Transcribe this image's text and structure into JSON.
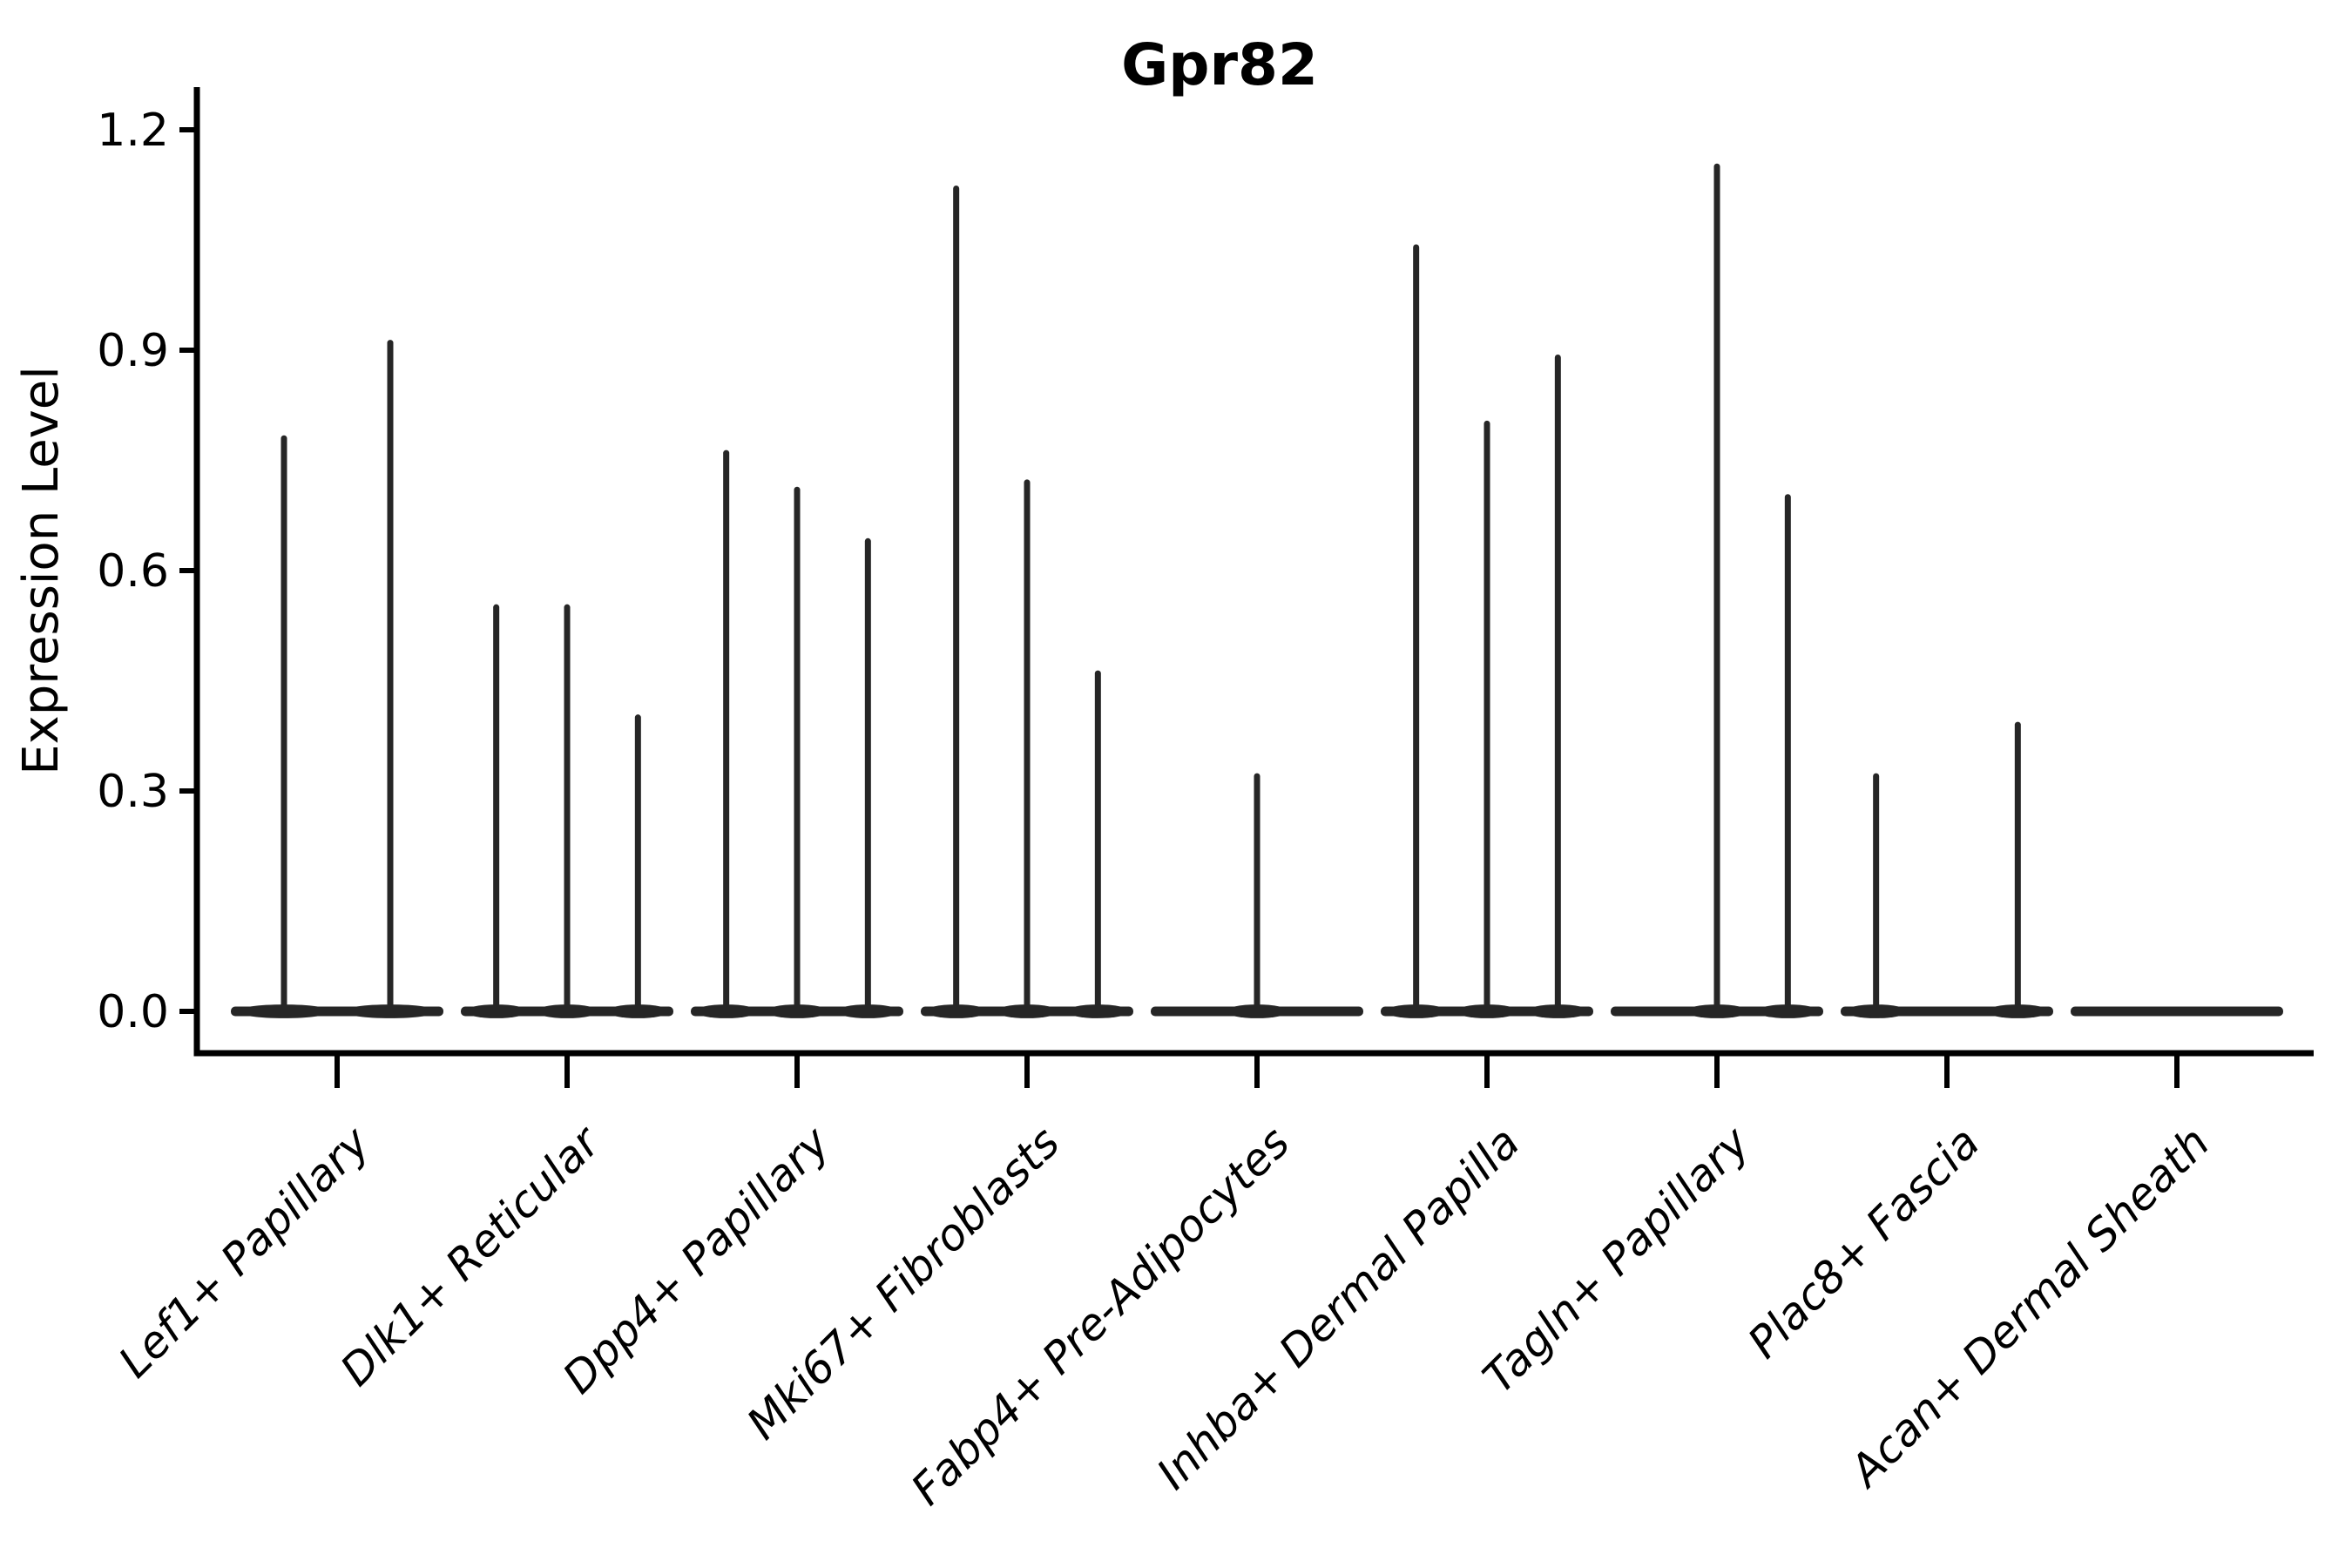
{
  "chart_data": {
    "type": "violin",
    "title": "Gpr82",
    "xlabel": "",
    "ylabel": "Expression Level",
    "ylim": [
      0,
      1.2
    ],
    "yticks": [
      0,
      0.3,
      0.6,
      0.9,
      1.2
    ],
    "ytick_labels": [
      "0.0",
      "0.3",
      "0.6",
      "0.9",
      "1.2"
    ],
    "grid": false,
    "legend": "none",
    "style": "sparse expression violins collapsed flat at zero baseline with thin vertical spikes reaching each violin's maximum expression value",
    "categories": [
      {
        "label": "Lef1+ Papillary",
        "violins": [
          0.78,
          0.91
        ]
      },
      {
        "label": "Dlk1+ Reticular",
        "violins": [
          0.55,
          0.55,
          0.4
        ]
      },
      {
        "label": "Dpp4+ Papillary",
        "violins": [
          0.76,
          0.71,
          0.64
        ]
      },
      {
        "label": "Mki67+ Fibroblasts",
        "violins": [
          1.12,
          0.72,
          0.46
        ]
      },
      {
        "label": "Fabp4+ Pre-Adipocytes",
        "violins": [
          0,
          0.32,
          0
        ]
      },
      {
        "label": "Inhba+ Dermal Papilla",
        "violins": [
          1.04,
          0.8,
          0.89
        ]
      },
      {
        "label": "Tagln+ Papillary",
        "violins": [
          0,
          1.15,
          0.7
        ]
      },
      {
        "label": "Plac8+ Fascia",
        "violins": [
          0.32,
          0,
          0.39
        ]
      },
      {
        "label": "Acan+ Dermal Sheath",
        "violins": [
          0,
          0,
          0
        ]
      }
    ],
    "colors": {
      "violin": "#262626",
      "axis": "#000000",
      "text": "#000000"
    }
  }
}
